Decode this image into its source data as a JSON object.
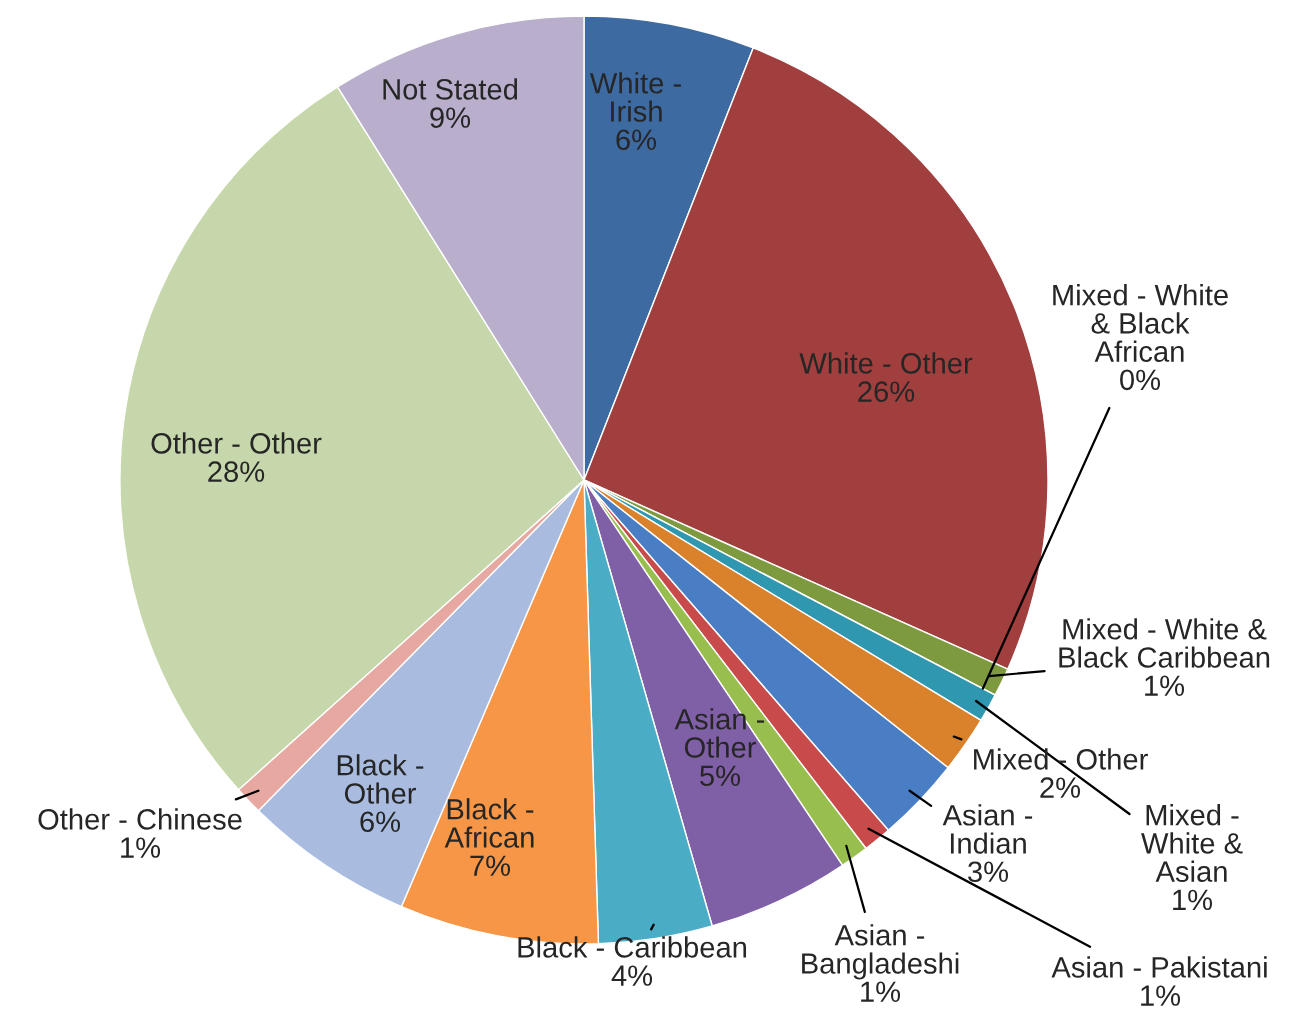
{
  "chart_data": {
    "type": "pie",
    "categories": [
      "White -\nIrish",
      "White - Other",
      "Mixed - White &\nBlack Caribbean",
      "Mixed - White\n& Black\nAfrican",
      "Mixed -\nWhite &\nAsian",
      "Mixed - Other",
      "Asian -\nIndian",
      "Asian - Pakistani",
      "Asian -\nBangladeshi",
      "Asian -\nOther",
      "Black - Caribbean",
      "Black -\nAfrican",
      "Black -\nOther",
      "Other - Chinese",
      "Other - Other",
      "Not Stated"
    ],
    "values": [
      6,
      26,
      1,
      0,
      1,
      2,
      3,
      1,
      1,
      5,
      4,
      7,
      6,
      1,
      28,
      9
    ],
    "value_labels": [
      "6%",
      "26%",
      "1%",
      "0%",
      "1%",
      "2%",
      "3%",
      "1%",
      "1%",
      "5%",
      "4%",
      "7%",
      "6%",
      "1%",
      "28%",
      "9%"
    ],
    "colors": [
      "#3d6aa1",
      "#a13f3f",
      "#7e9a3f",
      "#6b4e8b",
      "#2f97b0",
      "#d9822b",
      "#4a7ec4",
      "#c94a4a",
      "#98bf4e",
      "#7f5fa6",
      "#4bacc6",
      "#f79646",
      "#a9bce0",
      "#e6a8a0",
      "#c6d7ab",
      "#b9aecc"
    ],
    "legend": false
  }
}
